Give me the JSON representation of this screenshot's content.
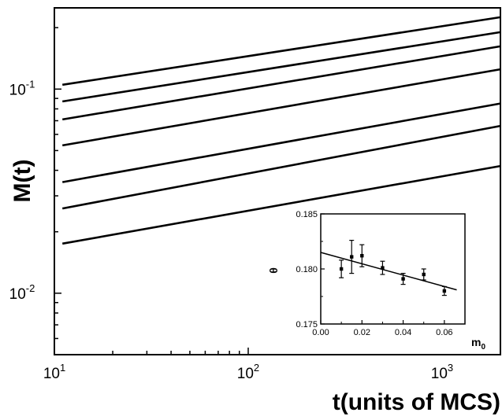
{
  "chart_data": [
    {
      "type": "line",
      "xlabel": "t(units of MCS)",
      "ylabel": "M(t)",
      "x_scale": "log",
      "y_scale": "log",
      "xlim": [
        10,
        2000
      ],
      "ylim": [
        0.005,
        0.25
      ],
      "x_ticks": [
        {
          "value": 10,
          "base": "10",
          "exp": "1"
        },
        {
          "value": 100,
          "base": "10",
          "exp": "2"
        },
        {
          "value": 1000,
          "base": "10",
          "exp": "3"
        }
      ],
      "y_ticks": [
        {
          "value": 0.01,
          "base": "10",
          "exp": "-2"
        },
        {
          "value": 0.1,
          "base": "10",
          "exp": "-1"
        }
      ],
      "series": [
        {
          "values": [
            [
              11,
              0.105
            ],
            [
              2000,
              0.225
            ]
          ]
        },
        {
          "values": [
            [
              11,
              0.087
            ],
            [
              2000,
              0.19
            ]
          ]
        },
        {
          "values": [
            [
              11,
              0.071
            ],
            [
              2000,
              0.162
            ]
          ]
        },
        {
          "values": [
            [
              11,
              0.053
            ],
            [
              2000,
              0.125
            ]
          ]
        },
        {
          "values": [
            [
              11,
              0.035
            ],
            [
              2000,
              0.085
            ]
          ]
        },
        {
          "values": [
            [
              11,
              0.026
            ],
            [
              2000,
              0.066
            ]
          ]
        },
        {
          "values": [
            [
              11,
              0.0175
            ],
            [
              2000,
              0.042
            ]
          ]
        }
      ]
    },
    {
      "type": "scatter",
      "xlabel": "m",
      "xlabel_sub": "0",
      "ylabel": "θ",
      "xlim": [
        0.0,
        0.07
      ],
      "ylim": [
        0.175,
        0.185
      ],
      "x_ticks": [
        "0.00",
        "0.02",
        "0.04",
        "0.06"
      ],
      "y_ticks": [
        "0.175",
        "0.180",
        "0.185"
      ],
      "points": [
        {
          "x": 0.01,
          "y": 0.18,
          "err": 0.0008
        },
        {
          "x": 0.015,
          "y": 0.1811,
          "err": 0.0015
        },
        {
          "x": 0.02,
          "y": 0.1812,
          "err": 0.001
        },
        {
          "x": 0.03,
          "y": 0.1801,
          "err": 0.0006
        },
        {
          "x": 0.04,
          "y": 0.1791,
          "err": 0.0005
        },
        {
          "x": 0.05,
          "y": 0.1795,
          "err": 0.0005
        },
        {
          "x": 0.06,
          "y": 0.178,
          "err": 0.0004
        }
      ],
      "fit_line": [
        [
          0.0,
          0.1815
        ],
        [
          0.066,
          0.1781
        ]
      ]
    }
  ]
}
